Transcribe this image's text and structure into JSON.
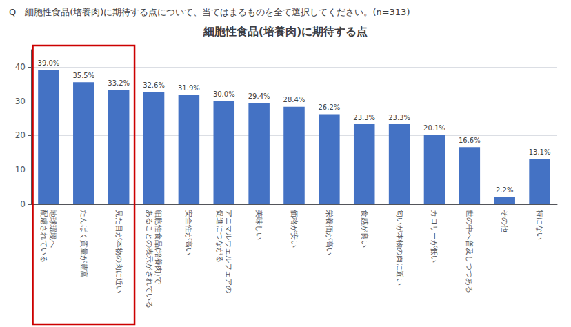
{
  "chart_data": {
    "type": "bar",
    "title": "細胞性食品(培養肉)に期待する点",
    "annotation": "Q　細胞性食品(培養肉)に期待する点について、当てはまるものを全て選択してください。(n=313)",
    "categories": [
      "地球環境へ\n配慮されている",
      "たんぱく質量が豊富",
      "見た目が本物の肉に近い",
      "細胞性食品(培養肉)で\nあることの表示がされている",
      "安全性が高い",
      "アニマルウェルフェアの\n促進につながる",
      "美味しい",
      "価格が安い",
      "栄養価が高い",
      "食感が良い",
      "匂いが本物の肉に近い",
      "カロリーが低い",
      "世の中へ普及しつつある",
      "その他",
      "特にない"
    ],
    "values": [
      39.0,
      35.5,
      33.2,
      32.6,
      31.9,
      30.0,
      29.4,
      28.4,
      26.2,
      23.3,
      23.3,
      20.1,
      16.6,
      2.2,
      13.1
    ],
    "value_labels": [
      "39.0%",
      "35.5%",
      "33.2%",
      "32.6%",
      "31.9%",
      "30.0%",
      "29.4%",
      "28.4%",
      "26.2%",
      "23.3%",
      "23.3%",
      "20.1%",
      "16.6%",
      "2.2%",
      "13.1%"
    ],
    "data_labels": true,
    "color": "#4472C4",
    "highlight_indices": [
      0,
      1,
      2
    ],
    "highlight_color": "#CC0000",
    "ylim": [
      0,
      45
    ],
    "yticks": [
      0,
      10,
      20,
      30,
      40
    ],
    "grid": true
  }
}
